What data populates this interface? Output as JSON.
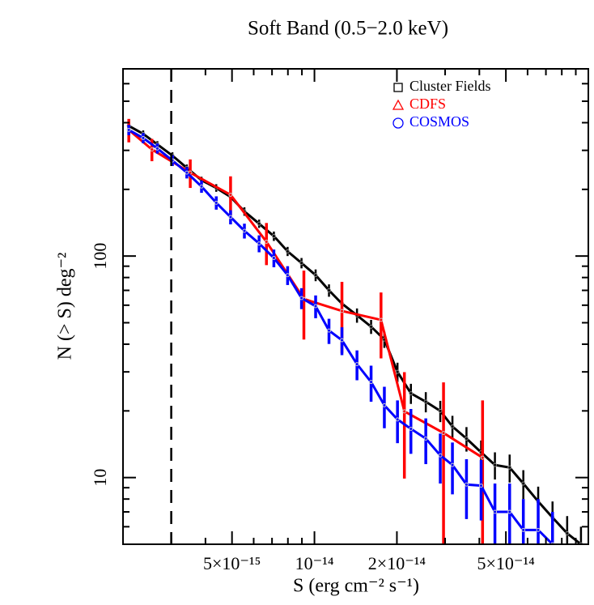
{
  "chart_data": {
    "type": "line",
    "title": "Soft Band (0.5−2.0 keV)",
    "xlabel": "S (erg cm⁻² s⁻¹)",
    "ylabel": "N (> S) deg⁻²",
    "xscale": "log",
    "yscale": "log",
    "xlim": [
      2e-15,
      1e-13
    ],
    "ylim": [
      5,
      700
    ],
    "xticks": [
      {
        "value": 5e-15,
        "label": "5×10⁻¹⁵"
      },
      {
        "value": 1e-14,
        "label": "10⁻¹⁴"
      },
      {
        "value": 2e-14,
        "label": "2×10⁻¹⁴"
      },
      {
        "value": 5e-14,
        "label": "5×10⁻¹⁴"
      }
    ],
    "yticks": [
      10,
      100
    ],
    "xminor_ticks": [
      3e-15,
      4e-15,
      6e-15,
      7e-15,
      8e-15,
      9e-15,
      3e-14,
      4e-14,
      6e-14,
      7e-14,
      8e-14,
      9e-14
    ],
    "yminor_ticks": [
      6,
      7,
      8,
      9,
      20,
      30,
      40,
      50,
      60,
      70,
      80,
      90,
      200,
      300,
      400,
      500,
      600
    ],
    "vline": 3e-15,
    "legend": "upper right",
    "series": [
      {
        "name": "Cluster Fields",
        "color": "#000000",
        "marker": "square",
        "x": [
          2.1e-15,
          2.37e-15,
          2.67e-15,
          3.03e-15,
          3.42e-15,
          3.87e-15,
          4.38e-15,
          4.94e-15,
          5.55e-15,
          6.28e-15,
          7.11e-15,
          7.98e-15,
          8.97e-15,
          1.01e-14,
          1.13e-14,
          1.26e-14,
          1.43e-14,
          1.61e-14,
          1.8e-14,
          2.01e-14,
          2.25e-14,
          2.55e-14,
          2.88e-14,
          3.19e-14,
          3.59e-14,
          4.06e-14,
          4.56e-14,
          5.16e-14,
          5.79e-14,
          6.56e-14,
          7.4e-14,
          8.37e-14,
          9.4e-14
        ],
        "values": [
          387,
          356,
          319,
          284,
          250,
          220,
          203,
          185,
          159,
          140,
          123,
          105,
          93,
          82,
          70,
          61,
          54,
          48,
          42,
          30,
          24,
          22,
          20,
          17,
          15,
          13,
          11.4,
          11.1,
          9.4,
          7.8,
          6.6,
          5.6,
          5.0
        ],
        "errors": [
          15,
          13,
          11,
          10,
          9,
          8,
          8,
          7,
          7,
          6,
          6,
          5,
          5,
          5,
          4.5,
          4,
          4,
          3.5,
          3.5,
          3,
          2.5,
          2.3,
          2.2,
          2,
          1.9,
          1.7,
          1.6,
          1.6,
          1.4,
          1.3,
          1.2,
          1.1,
          1.0
        ]
      },
      {
        "name": "CDFS",
        "color": "#ff0000",
        "marker": "triangle",
        "x": [
          2.1e-15,
          2.55e-15,
          3.52e-15,
          4.94e-15,
          6.68e-15,
          9.15e-15,
          1.26e-14,
          1.75e-14,
          2.13e-14,
          2.96e-14,
          4.11e-14
        ],
        "values": [
          371,
          303,
          238,
          189,
          116,
          64,
          56.5,
          51.5,
          19.9,
          15.9,
          12.3
        ],
        "errors": [
          45,
          35,
          35,
          40,
          25,
          22,
          20,
          17,
          10,
          11,
          10
        ]
      },
      {
        "name": "COSMOS",
        "color": "#0000ff",
        "marker": "circle",
        "x": [
          2.1e-15,
          2.37e-15,
          2.67e-15,
          3.03e-15,
          3.42e-15,
          3.87e-15,
          4.38e-15,
          4.94e-15,
          5.55e-15,
          6.28e-15,
          7.11e-15,
          7.98e-15,
          8.97e-15,
          1.01e-14,
          1.13e-14,
          1.26e-14,
          1.43e-14,
          1.61e-14,
          1.8e-14,
          2.01e-14,
          2.25e-14,
          2.55e-14,
          2.88e-14,
          3.19e-14,
          3.59e-14,
          4.06e-14,
          4.56e-14,
          5.16e-14,
          5.79e-14,
          6.56e-14,
          7.4e-14
        ],
        "values": [
          371,
          341,
          306,
          270,
          238,
          206,
          174,
          150,
          130,
          114,
          98,
          82,
          64.6,
          59.4,
          46.1,
          41.7,
          32.5,
          27,
          21.2,
          18.3,
          16.6,
          15.0,
          12.6,
          11.4,
          9.3,
          9.2,
          7.0,
          7.0,
          5.8,
          5.8,
          5.0
        ],
        "errors": [
          20,
          18,
          16,
          15,
          14,
          13,
          12,
          11,
          10,
          10,
          9,
          8,
          7,
          7,
          6,
          6,
          5,
          5,
          4.5,
          4,
          3.8,
          3.5,
          3.2,
          3,
          2.8,
          2.8,
          2.4,
          2.4,
          2.2,
          2.2,
          2
        ]
      }
    ]
  }
}
